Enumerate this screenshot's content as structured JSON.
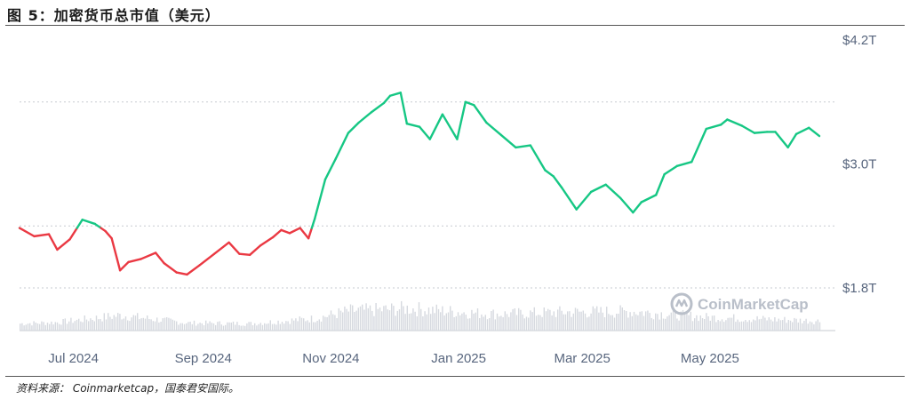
{
  "figure_title": "图 5：加密货币总市值（美元）",
  "source_note": "资料来源： Coinmarketcap，国泰君安国际。",
  "watermark": "CoinMarketCap",
  "chart_data": {
    "type": "line",
    "title": "",
    "ylabel": "",
    "xlabel": "",
    "y_unit": "USD trillion",
    "ylim": [
      1.4,
      4.3
    ],
    "yticks": [
      1.8,
      3.0,
      4.2
    ],
    "ytick_labels": [
      "$1.8T",
      "$3.0T",
      "$4.2T"
    ],
    "xtick_labels": [
      "Jul 2024",
      "Sep 2024",
      "Nov 2024",
      "Jan 2025",
      "Mar 2025",
      "May 2025"
    ],
    "xtick_dates": [
      "2024-07-01",
      "2024-09-01",
      "2024-11-01",
      "2025-01-01",
      "2025-03-01",
      "2025-05-01"
    ],
    "grid": true,
    "colors": {
      "up": "#16c784",
      "down": "#ea3943",
      "volume": "#d6d9df",
      "grid": "#c7cbd1"
    },
    "dates": [
      "2024-06-18",
      "2024-06-25",
      "2024-07-02",
      "2024-07-06",
      "2024-07-12",
      "2024-07-18",
      "2024-07-24",
      "2024-07-29",
      "2024-08-01",
      "2024-08-05",
      "2024-08-09",
      "2024-08-15",
      "2024-08-22",
      "2024-08-26",
      "2024-09-01",
      "2024-09-06",
      "2024-09-12",
      "2024-09-19",
      "2024-09-26",
      "2024-10-01",
      "2024-10-06",
      "2024-10-11",
      "2024-10-17",
      "2024-10-21",
      "2024-10-25",
      "2024-10-30",
      "2024-11-03",
      "2024-11-06",
      "2024-11-11",
      "2024-11-16",
      "2024-11-22",
      "2024-11-27",
      "2024-12-03",
      "2024-12-09",
      "2024-12-12",
      "2024-12-17",
      "2024-12-20",
      "2024-12-26",
      "2024-12-31",
      "2025-01-06",
      "2025-01-13",
      "2025-01-17",
      "2025-01-21",
      "2025-01-27",
      "2025-02-03",
      "2025-02-10",
      "2025-02-17",
      "2025-02-24",
      "2025-02-28",
      "2025-03-04",
      "2025-03-11",
      "2025-03-18",
      "2025-03-25",
      "2025-04-01",
      "2025-04-07",
      "2025-04-11",
      "2025-04-18",
      "2025-04-22",
      "2025-04-28",
      "2025-05-05",
      "2025-05-12",
      "2025-05-19",
      "2025-05-22",
      "2025-05-29",
      "2025-06-04",
      "2025-06-10",
      "2025-06-14",
      "2025-06-20",
      "2025-06-24",
      "2025-06-30",
      "2025-07-05"
    ],
    "values": [
      2.38,
      2.3,
      2.32,
      2.17,
      2.27,
      2.46,
      2.42,
      2.35,
      2.28,
      1.97,
      2.05,
      2.08,
      2.14,
      2.04,
      1.95,
      1.93,
      2.02,
      2.13,
      2.24,
      2.13,
      2.12,
      2.21,
      2.29,
      2.36,
      2.33,
      2.38,
      2.28,
      2.47,
      2.85,
      3.05,
      3.3,
      3.4,
      3.5,
      3.59,
      3.66,
      3.69,
      3.39,
      3.36,
      3.24,
      3.48,
      3.24,
      3.6,
      3.57,
      3.4,
      3.28,
      3.16,
      3.18,
      2.94,
      2.88,
      2.77,
      2.56,
      2.73,
      2.8,
      2.67,
      2.53,
      2.63,
      2.7,
      2.9,
      2.98,
      3.02,
      3.34,
      3.38,
      3.43,
      3.37,
      3.3,
      3.31,
      3.31,
      3.16,
      3.29,
      3.35,
      3.27
    ],
    "volume_dates": [
      "2024-06-18",
      "2024-07-06",
      "2024-08-05",
      "2024-09-06",
      "2024-10-06",
      "2024-11-06",
      "2024-11-22",
      "2024-12-09",
      "2024-12-20",
      "2025-01-21",
      "2025-02-03",
      "2025-03-04",
      "2025-04-07",
      "2025-05-12",
      "2025-06-14",
      "2025-07-05"
    ],
    "volume_values": [
      0.22,
      0.26,
      0.48,
      0.24,
      0.22,
      0.38,
      0.62,
      0.66,
      0.7,
      0.55,
      0.52,
      0.58,
      0.6,
      0.42,
      0.35,
      0.3
    ]
  }
}
